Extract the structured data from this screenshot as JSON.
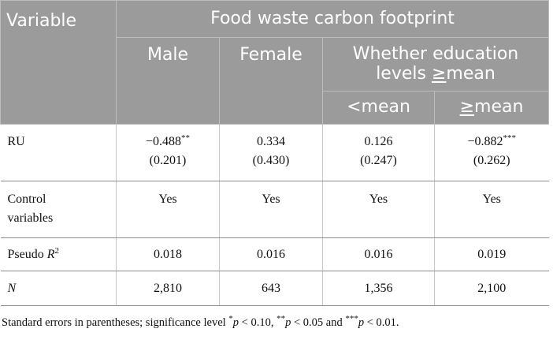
{
  "table": {
    "header": {
      "variable": "Variable",
      "group_title": "Food waste carbon footprint",
      "col_male": "Male",
      "col_female": "Female",
      "col_education_line1": "Whether education",
      "col_education_line2_prefix": "levels ",
      "col_education_line2_op": "≥",
      "col_education_line2_suffix": "mean",
      "sub_lt_op": "<",
      "sub_lt_word": "mean",
      "sub_ge_op": "≥",
      "sub_ge_word": "mean"
    },
    "rows": {
      "ru": {
        "label": "RU",
        "male_coef": "−0.488",
        "male_stars": "**",
        "male_se": "(0.201)",
        "female_coef": "0.334",
        "female_se": "(0.430)",
        "lt_coef": "0.126",
        "lt_se": "(0.247)",
        "ge_coef": "−0.882",
        "ge_stars": "***",
        "ge_se": "(0.262)"
      },
      "control": {
        "label_line1": "Control",
        "label_line2": "variables",
        "male": "Yes",
        "female": "Yes",
        "lt": "Yes",
        "ge": "Yes"
      },
      "pseudo": {
        "label": "Pseudo ",
        "label_italic": "R",
        "label_sup": "2",
        "male": "0.018",
        "female": "0.016",
        "lt": "0.016",
        "ge": "0.019"
      },
      "n": {
        "label": "N",
        "male": "2,810",
        "female": "643",
        "lt": "1,356",
        "ge": "2,100"
      }
    }
  },
  "footnote": {
    "prefix": "Standard errors in parentheses; significance level ",
    "s1": "*",
    "p1": "p",
    "t1": " < 0.10, ",
    "s2": "**",
    "p2": "p",
    "t2": " < 0.05 and ",
    "s3": "***",
    "p3": "p",
    "t3": " < 0.01."
  }
}
